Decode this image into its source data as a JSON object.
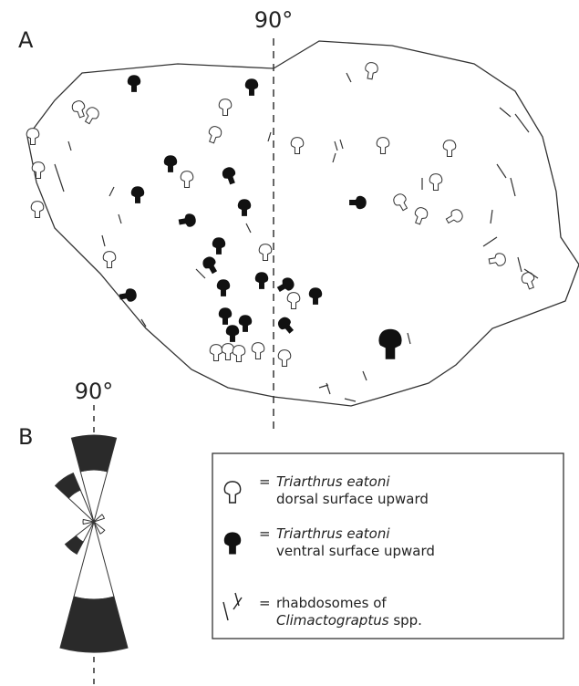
{
  "panel_a": {
    "label": "A",
    "orientation_label": "90°"
  },
  "panel_b": {
    "label": "B",
    "orientation_label": "90°"
  },
  "legend": {
    "items": [
      {
        "symbol": "=",
        "name": "Triarthrus eatoni",
        "description": "dorsal surface upward"
      },
      {
        "symbol": "=",
        "name": "Triarthrus eatoni",
        "description": "ventral surface upward"
      },
      {
        "symbol": "=",
        "description": "rhabdosomes of",
        "name": "Climactograptus",
        "suffix": "spp."
      }
    ]
  }
}
